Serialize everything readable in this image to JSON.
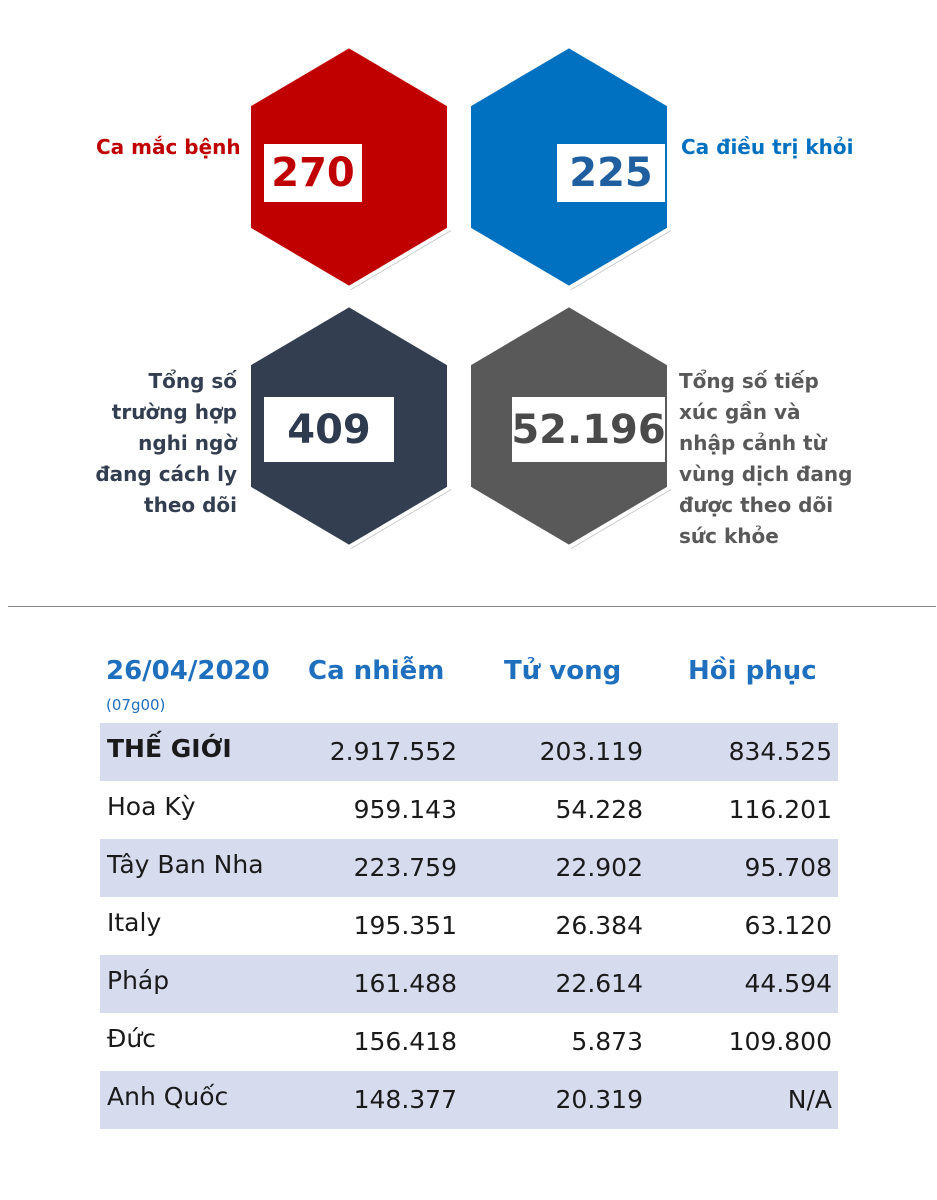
{
  "stats": {
    "cases": {
      "label": "Ca mắc bệnh",
      "value": "270",
      "color": "#c00000"
    },
    "recovered": {
      "label": "Ca điều trị khỏi",
      "value": "225",
      "color": "#0070c0"
    },
    "quarantine": {
      "label_lines": [
        "Tổng số",
        "trường hợp",
        "nghi ngờ",
        "đang cách ly",
        "theo dõi"
      ],
      "value": "409",
      "color": "#333f50"
    },
    "monitoring": {
      "label_lines": [
        "Tổng số tiếp",
        "xúc gần và",
        "nhập cảnh từ",
        "vùng dịch đang",
        "được theo dõi",
        "sức khỏe"
      ],
      "value": "52.196",
      "color": "#595959"
    }
  },
  "table": {
    "date": "26/04/2020",
    "time": "(07g00)",
    "headers": [
      "Ca nhiễm",
      "Tử vong",
      "Hồi phục"
    ],
    "rows": [
      {
        "name": "THẾ GIỚI",
        "infected": "2.917.552",
        "deaths": "203.119",
        "recovered": "834.525"
      },
      {
        "name": "Hoa Kỳ",
        "infected": "959.143",
        "deaths": "54.228",
        "recovered": "116.201"
      },
      {
        "name": "Tây Ban Nha",
        "infected": "223.759",
        "deaths": "22.902",
        "recovered": "95.708"
      },
      {
        "name": "Italy",
        "infected": "195.351",
        "deaths": "26.384",
        "recovered": "63.120"
      },
      {
        "name": "Pháp",
        "infected": "161.488",
        "deaths": "22.614",
        "recovered": "44.594"
      },
      {
        "name": "Đức",
        "infected": "156.418",
        "deaths": "5.873",
        "recovered": "109.800"
      },
      {
        "name": "Anh Quốc",
        "infected": "148.377",
        "deaths": "20.319",
        "recovered": "N/A"
      }
    ]
  }
}
